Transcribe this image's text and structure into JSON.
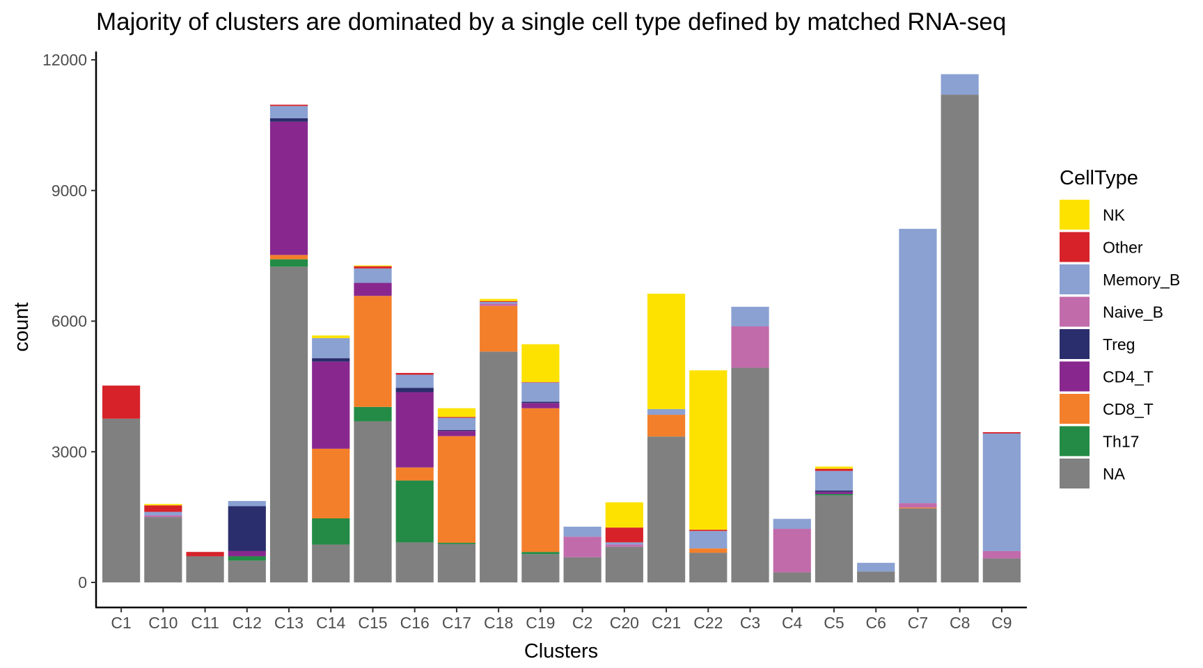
{
  "chart_data": {
    "type": "bar",
    "stacked": true,
    "title": "Majority of clusters are dominated by a single cell type defined by matched RNA-seq",
    "xlabel": "Clusters",
    "ylabel": "count",
    "ylim": [
      0,
      12000
    ],
    "yticks": [
      0,
      3000,
      6000,
      9000,
      12000
    ],
    "grid": false,
    "legend_position": "right",
    "legend_title": "CellType",
    "categories": [
      "C1",
      "C10",
      "C11",
      "C12",
      "C13",
      "C14",
      "C15",
      "C16",
      "C17",
      "C18",
      "C19",
      "C2",
      "C20",
      "C21",
      "C22",
      "C3",
      "C4",
      "C5",
      "C6",
      "C7",
      "C8",
      "C9"
    ],
    "series": [
      {
        "name": "NA",
        "color": "#808080",
        "values": [
          3760,
          1500,
          600,
          500,
          7250,
          870,
          3700,
          920,
          880,
          5300,
          650,
          580,
          820,
          3350,
          680,
          4930,
          230,
          2000,
          250,
          1700,
          11200,
          550
        ]
      },
      {
        "name": "Th17",
        "color": "#238B45",
        "values": [
          0,
          0,
          0,
          100,
          170,
          600,
          330,
          1420,
          30,
          0,
          50,
          0,
          0,
          0,
          0,
          0,
          0,
          30,
          0,
          0,
          0,
          0
        ]
      },
      {
        "name": "CD8_T",
        "color": "#F47F2B",
        "values": [
          0,
          0,
          0,
          0,
          100,
          1600,
          2550,
          300,
          2450,
          1050,
          3300,
          0,
          0,
          500,
          100,
          0,
          0,
          0,
          0,
          20,
          0,
          0
        ]
      },
      {
        "name": "CD4_T",
        "color": "#88288F",
        "values": [
          0,
          0,
          0,
          120,
          3060,
          2000,
          300,
          1730,
          120,
          0,
          120,
          0,
          0,
          0,
          0,
          0,
          0,
          50,
          0,
          0,
          0,
          0
        ]
      },
      {
        "name": "Treg",
        "color": "#2A2E6C",
        "values": [
          0,
          0,
          0,
          1030,
          80,
          80,
          0,
          100,
          20,
          0,
          30,
          0,
          0,
          0,
          0,
          0,
          0,
          30,
          0,
          0,
          0,
          0
        ]
      },
      {
        "name": "Naive_B",
        "color": "#C26BAB",
        "values": [
          0,
          40,
          0,
          0,
          0,
          0,
          0,
          0,
          0,
          50,
          0,
          470,
          50,
          0,
          0,
          950,
          1000,
          0,
          0,
          100,
          0,
          170
        ]
      },
      {
        "name": "Memory_B",
        "color": "#8AA1D2",
        "values": [
          0,
          80,
          0,
          120,
          280,
          460,
          330,
          300,
          280,
          40,
          440,
          230,
          50,
          130,
          400,
          450,
          230,
          450,
          200,
          6300,
          470,
          2700
        ]
      },
      {
        "name": "Other",
        "color": "#D7222A",
        "values": [
          760,
          150,
          100,
          0,
          30,
          0,
          50,
          40,
          20,
          20,
          10,
          0,
          340,
          0,
          30,
          0,
          0,
          50,
          0,
          0,
          0,
          30
        ]
      },
      {
        "name": "NK",
        "color": "#FDE200",
        "values": [
          0,
          30,
          0,
          0,
          0,
          60,
          20,
          0,
          200,
          50,
          870,
          0,
          580,
          2650,
          3660,
          0,
          0,
          50,
          0,
          0,
          0,
          0
        ]
      }
    ],
    "legend_order": [
      "NK",
      "Other",
      "Memory_B",
      "Naive_B",
      "Treg",
      "CD4_T",
      "CD8_T",
      "Th17",
      "NA"
    ]
  }
}
